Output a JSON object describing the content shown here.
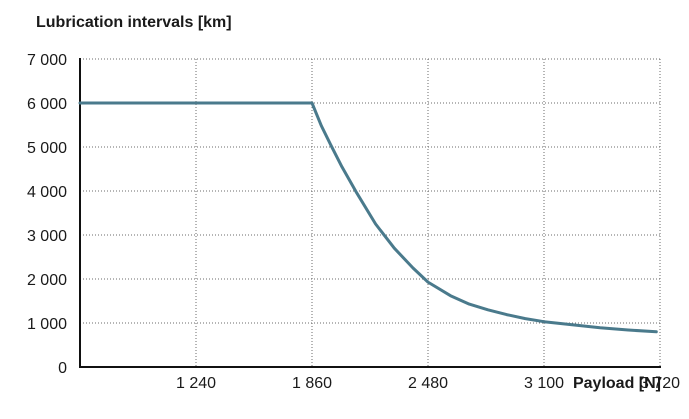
{
  "chart_data": {
    "type": "line",
    "ylabel": "Lubrication intervals [km]",
    "xlabel": "Payload [N]",
    "xlim": [
      620,
      3720
    ],
    "ylim": [
      0,
      7000
    ],
    "x_ticks": [
      1240,
      1860,
      2480,
      3100,
      3720
    ],
    "x_tick_labels": [
      "1 240",
      "1 860",
      "2 480",
      "3 100",
      "3 720"
    ],
    "y_ticks": [
      0,
      1000,
      2000,
      3000,
      4000,
      5000,
      6000,
      7000
    ],
    "y_tick_labels": [
      "0",
      "1 000",
      "2 000",
      "3 000",
      "4 000",
      "5 000",
      "6 000",
      "7 000"
    ],
    "grid": true,
    "series": [
      {
        "color": "#4a7a8c",
        "x": [
          620,
          1860,
          1910,
          1960,
          2020,
          2100,
          2200,
          2300,
          2400,
          2480,
          2600,
          2700,
          2800,
          2900,
          3000,
          3100,
          3250,
          3400,
          3550,
          3700
        ],
        "y": [
          6000,
          6000,
          5480,
          5050,
          4550,
          3950,
          3250,
          2700,
          2250,
          1930,
          1620,
          1430,
          1300,
          1190,
          1100,
          1030,
          960,
          890,
          840,
          800
        ]
      }
    ]
  }
}
